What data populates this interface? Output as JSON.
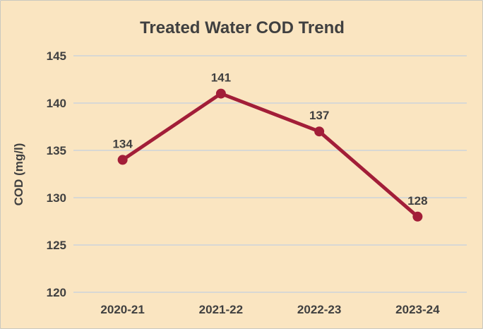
{
  "chart_data": {
    "type": "line",
    "title": "Treated Water COD Trend",
    "categories": [
      "2020-21",
      "2021-22",
      "2022-23",
      "2023-24"
    ],
    "values": [
      134,
      141,
      137,
      128
    ],
    "xlabel": "",
    "ylabel": "COD (mg/l)",
    "ylim": [
      120,
      145
    ],
    "yticks": [
      120,
      125,
      130,
      135,
      140,
      145
    ],
    "grid": true,
    "legend_position": "none",
    "data_labels": [
      134,
      141,
      137,
      128
    ],
    "colors": {
      "line": "#A21E38",
      "background": "#FAE5C1",
      "text": "#404040",
      "gridline": "#D8D8D4"
    }
  }
}
